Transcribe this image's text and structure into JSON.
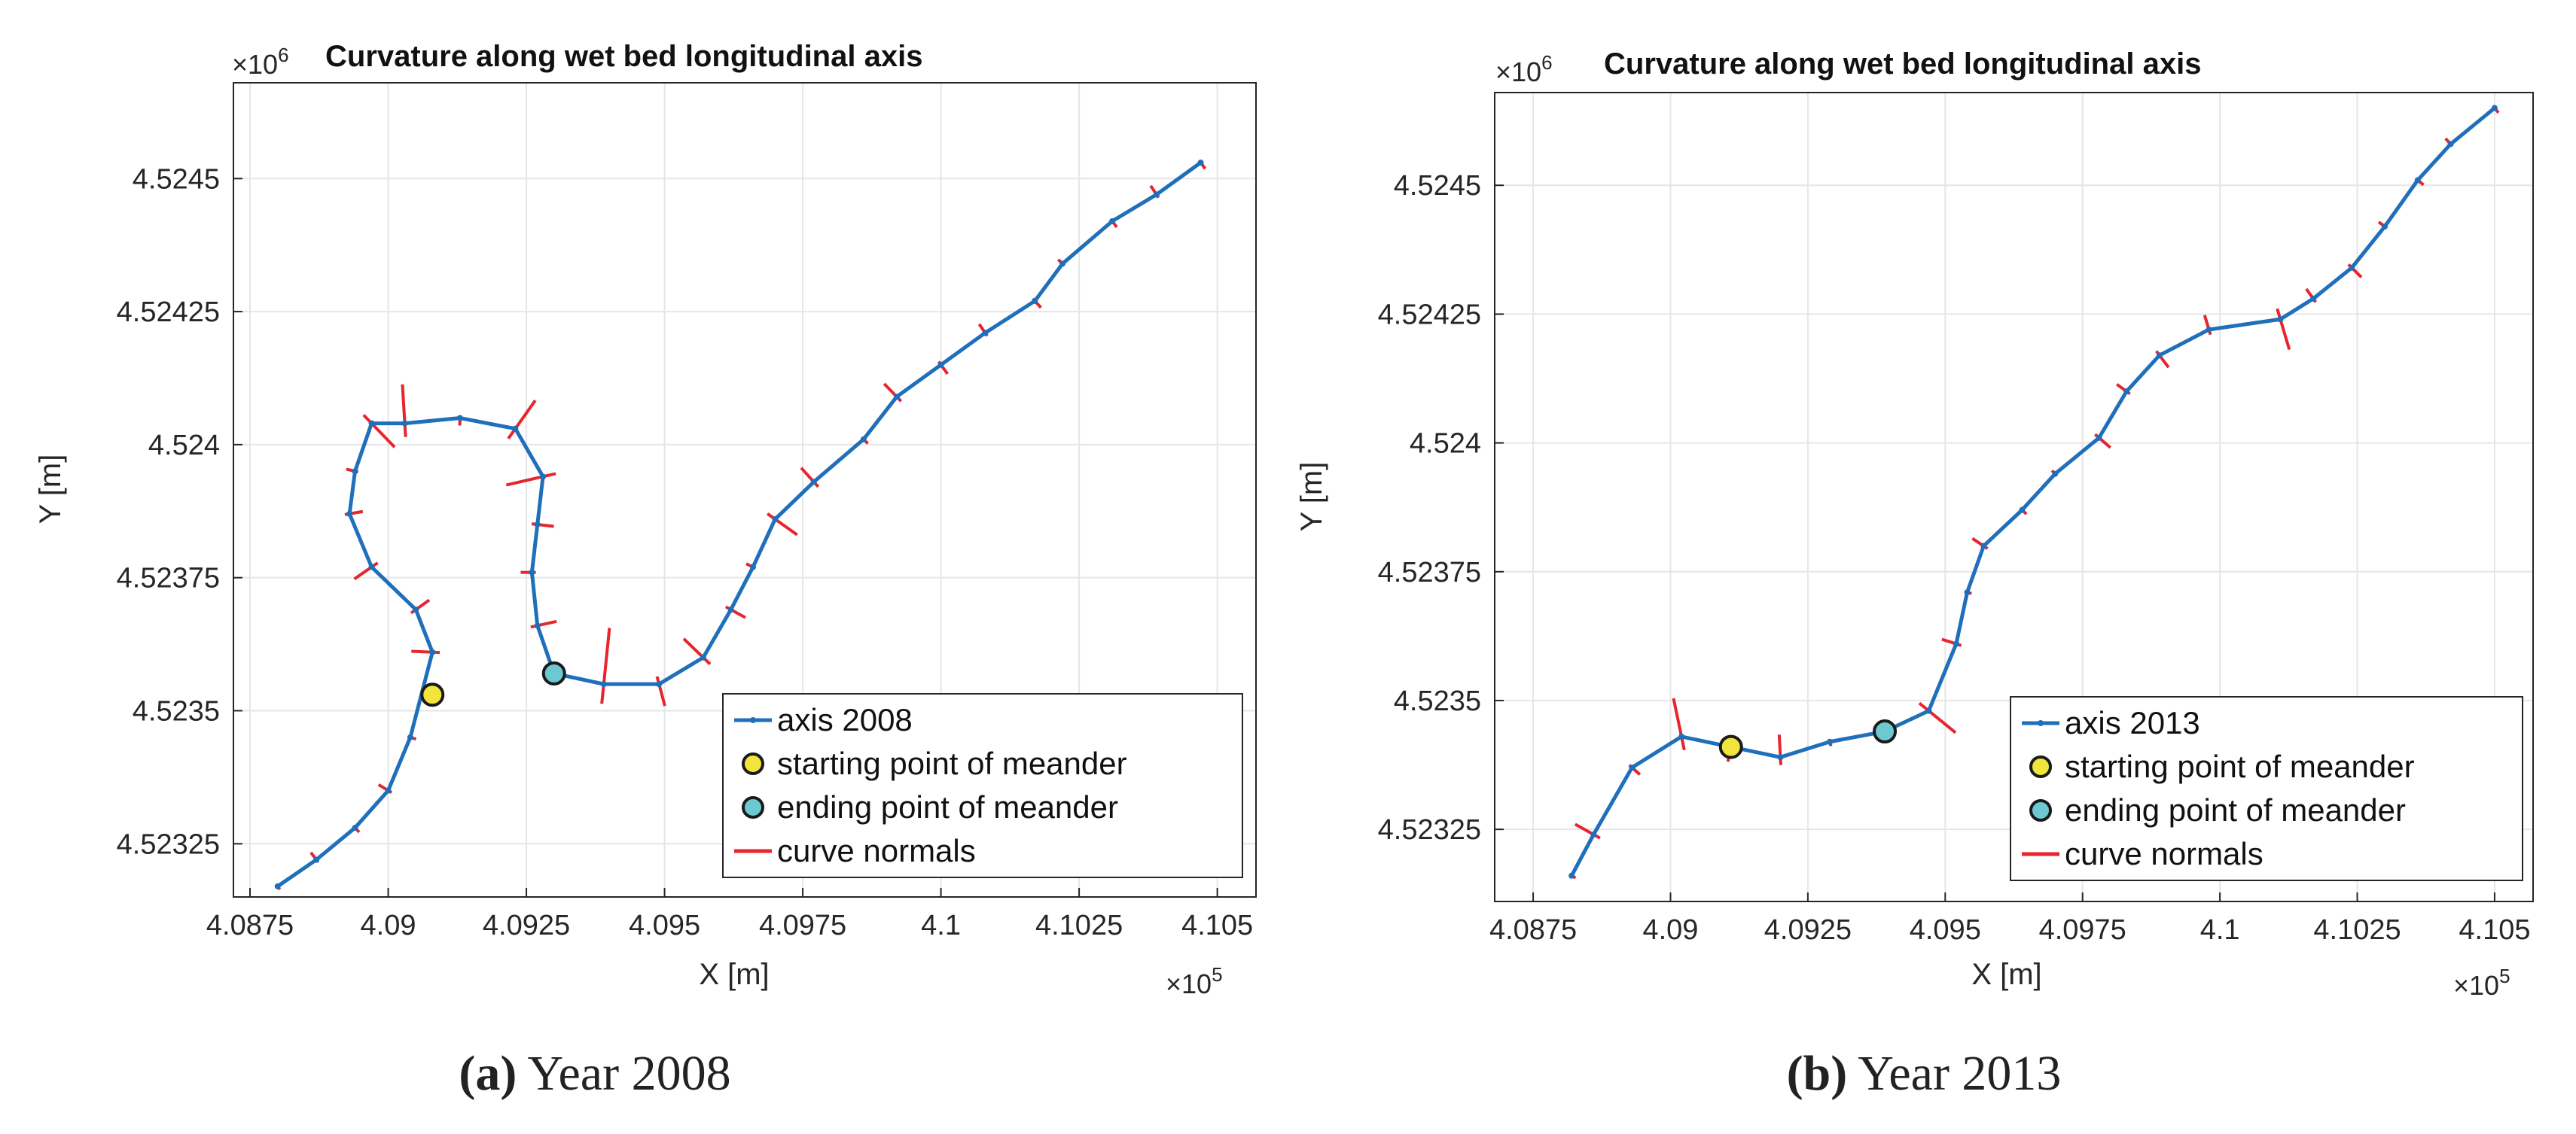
{
  "figure": {
    "captions": [
      {
        "letter": "(a)",
        "text": "Year 2008"
      },
      {
        "letter": "(b)",
        "text": "Year 2013"
      }
    ]
  },
  "chart_data": [
    {
      "type": "line",
      "title": "Curvature along wet bed longitudinal axis",
      "xlabel": "X [m]",
      "ylabel": "Y [m]",
      "x_multiplier": "×10",
      "x_exponent": "5",
      "y_multiplier": "×10",
      "y_exponent": "6",
      "xlim": [
        4.0872,
        4.1057
      ],
      "ylim": [
        4.52315,
        4.52468
      ],
      "grid": true,
      "xticks": [
        4.0875,
        4.09,
        4.0925,
        4.095,
        4.0975,
        4.1,
        4.1025,
        4.105
      ],
      "xtick_labels": [
        "4.0875",
        "4.09",
        "4.0925",
        "4.095",
        "4.0975",
        "4.1",
        "4.1025",
        "4.105"
      ],
      "yticks": [
        4.52325,
        4.5235,
        4.52375,
        4.524,
        4.52425,
        4.5245
      ],
      "ytick_labels": [
        "4.52325",
        "4.5235",
        "4.52375",
        "4.524",
        "4.52425",
        "4.5245"
      ],
      "legend_position": "bottom-right",
      "series": [
        {
          "name": "axis 2008",
          "color": "#1f6fba",
          "x": [
            4.088,
            4.0887,
            4.0894,
            4.09,
            4.0904,
            4.0908,
            4.0905,
            4.0897,
            4.0893,
            4.0894,
            4.0897,
            4.0903,
            4.0913,
            4.0923,
            4.0928,
            4.0927,
            4.0926,
            4.0927,
            4.093,
            4.0939,
            4.0949,
            4.0957,
            4.0962,
            4.0966,
            4.097,
            4.0977,
            4.0986,
            4.0992,
            4.1,
            4.1008,
            4.1017,
            4.1022,
            4.1031,
            4.1039,
            4.1047
          ],
          "y": [
            4.52317,
            4.52322,
            4.52328,
            4.52335,
            4.52345,
            4.52361,
            4.52369,
            4.52377,
            4.52387,
            4.52395,
            4.52404,
            4.52404,
            4.52405,
            4.52403,
            4.52394,
            4.52385,
            4.52376,
            4.52366,
            4.52357,
            4.52355,
            4.52355,
            4.5236,
            4.52369,
            4.52377,
            4.52386,
            4.52393,
            4.52401,
            4.52409,
            4.52415,
            4.52421,
            4.52427,
            4.52434,
            4.52442,
            4.52447,
            4.52453
          ]
        }
      ],
      "points": [
        {
          "name": "starting point of meander",
          "color": "#f1e43c",
          "x": 4.0908,
          "y": 4.52353
        },
        {
          "name": "ending point of meander",
          "color": "#6cc9d2",
          "x": 4.093,
          "y": 4.52357
        }
      ],
      "normals": {
        "name": "curve normals",
        "color": "#e8242d",
        "lengths": [
          5,
          12,
          8,
          15,
          8,
          28,
          22,
          28,
          18,
          12,
          44,
          52,
          10,
          46,
          50,
          22,
          15,
          26,
          14,
          75,
          30,
          36,
          22,
          10,
          36,
          25,
          8,
          24,
          15,
          14,
          12,
          8,
          10,
          14,
          10
        ]
      }
    },
    {
      "type": "line",
      "title": "Curvature along wet bed longitudinal axis",
      "xlabel": "X [m]",
      "ylabel": "Y [m]",
      "x_multiplier": "×10",
      "x_exponent": "5",
      "y_multiplier": "×10",
      "y_exponent": "6",
      "xlim": [
        4.0868,
        4.1057
      ],
      "ylim": [
        4.52311,
        4.52468
      ],
      "grid": true,
      "xticks": [
        4.0875,
        4.09,
        4.0925,
        4.095,
        4.0975,
        4.1,
        4.1025,
        4.105
      ],
      "xtick_labels": [
        "4.0875",
        "4.09",
        "4.0925",
        "4.095",
        "4.0975",
        "4.1",
        "4.1025",
        "4.105"
      ],
      "yticks": [
        4.52325,
        4.5235,
        4.52375,
        4.524,
        4.52425,
        4.5245
      ],
      "ytick_labels": [
        "4.52325",
        "4.5235",
        "4.52375",
        "4.524",
        "4.52425",
        "4.5245"
      ],
      "legend_position": "bottom-right",
      "series": [
        {
          "name": "axis 2013",
          "color": "#1f6fba",
          "x": [
            4.0882,
            4.0886,
            4.0893,
            4.0902,
            4.0911,
            4.092,
            4.0929,
            4.0939,
            4.0947,
            4.0952,
            4.0954,
            4.0957,
            4.0964,
            4.097,
            4.0978,
            4.0983,
            4.0989,
            4.0998,
            4.1011,
            4.1017,
            4.1024,
            4.103,
            4.1036,
            4.1042,
            4.105
          ],
          "y": [
            4.52316,
            4.52324,
            4.52337,
            4.52343,
            4.52341,
            4.52339,
            4.52342,
            4.52344,
            4.52348,
            4.52361,
            4.52371,
            4.5238,
            4.52387,
            4.52394,
            4.52401,
            4.5241,
            4.52417,
            4.52422,
            4.52424,
            4.52428,
            4.52434,
            4.52442,
            4.52451,
            4.52458,
            4.52465
          ]
        }
      ],
      "points": [
        {
          "name": "starting point of meander",
          "color": "#f1e43c",
          "x": 4.0911,
          "y": 4.52341
        },
        {
          "name": "ending point of meander",
          "color": "#6cc9d2",
          "x": 4.0939,
          "y": 4.52344
        }
      ],
      "normals": {
        "name": "curve normals",
        "color": "#e8242d",
        "lengths": [
          6,
          28,
          14,
          52,
          20,
          30,
          6,
          14,
          46,
          20,
          6,
          18,
          8,
          6,
          20,
          16,
          20,
          20,
          42,
          16,
          18,
          10,
          10,
          10,
          8
        ]
      }
    }
  ]
}
